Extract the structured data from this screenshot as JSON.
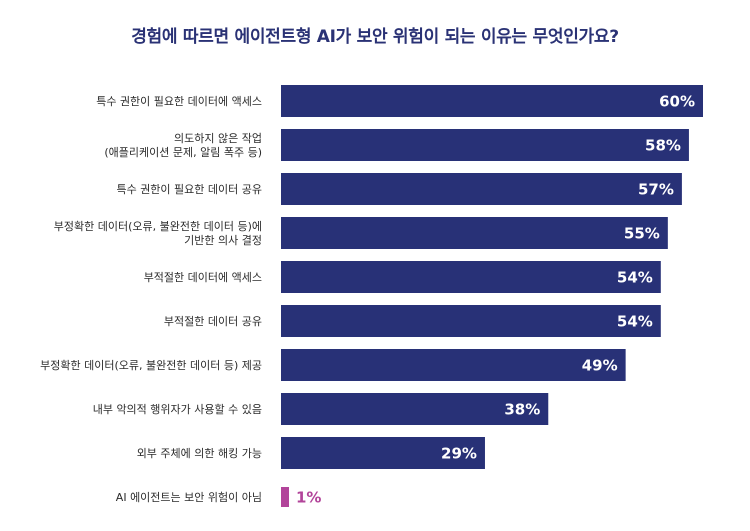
{
  "chart_data": {
    "type": "bar",
    "orientation": "horizontal",
    "title": "경험에 따르면 에이전트형 AI가 보안 위험이 되는 이유는 무엇인가요?",
    "categories": [
      [
        "특수 권한이 필요한 데이터에 액세스"
      ],
      [
        "의도하지 않은 작업",
        "(애플리케이션 문제, 알림 폭주 등)"
      ],
      [
        "특수 권한이 필요한 데이터 공유"
      ],
      [
        "부정확한 데이터(오류, 불완전한 데이터 등)에",
        "기반한 의사 결정"
      ],
      [
        "부적절한 데이터에 액세스"
      ],
      [
        "부적절한 데이터 공유"
      ],
      [
        "부정확한 데이터(오류, 불완전한 데이터 등) 제공"
      ],
      [
        "내부 악의적 행위자가 사용할 수 있음"
      ],
      [
        "외부 주체에 의한 해킹 가능"
      ],
      [
        "AI 에이전트는 보안 위험이 아님"
      ]
    ],
    "values": [
      60,
      58,
      57,
      55,
      54,
      54,
      49,
      38,
      29,
      1
    ],
    "value_labels": [
      "60%",
      "58%",
      "57%",
      "55%",
      "54%",
      "54%",
      "49%",
      "38%",
      "29%",
      "1%"
    ],
    "value_unit": "%",
    "xlim": [
      0,
      60
    ],
    "grid": false,
    "legend": "none",
    "colors": {
      "bar": "#283177",
      "bar_highlight": "#b2449a",
      "title": "#2a3275",
      "label_inside": "#ffffff",
      "label_outside": "#b2449a"
    }
  }
}
